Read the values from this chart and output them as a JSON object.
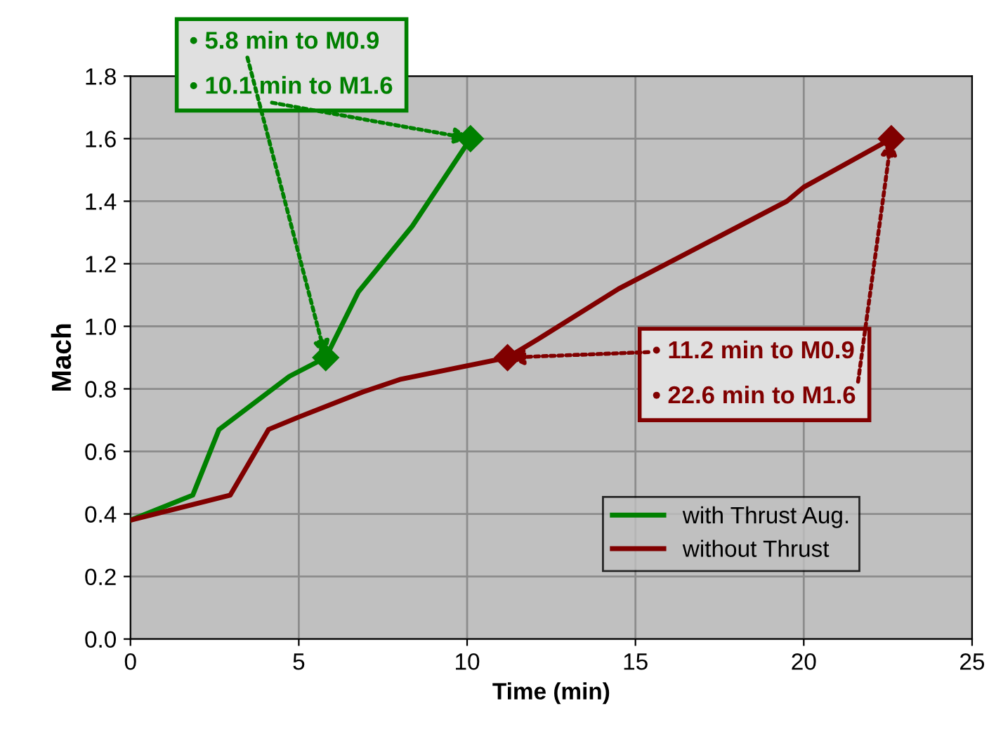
{
  "chart_data": {
    "type": "line",
    "xlabel": "Time (min)",
    "ylabel": "Mach",
    "series": [
      {
        "name": "with Thrust Aug.",
        "color": "#008000",
        "x": [
          0,
          1.85,
          2.63,
          4.72,
          5.8,
          6.77,
          8.37,
          10.1
        ],
        "values": [
          0.38,
          0.46,
          0.67,
          0.84,
          0.9,
          1.11,
          1.32,
          1.6
        ]
      },
      {
        "name": "without Thrust",
        "color": "#800000",
        "x": [
          0,
          2.96,
          4.1,
          5.0,
          6.9,
          8.0,
          11.2,
          12.2,
          14.5,
          19.5,
          20.0,
          22.6
        ],
        "values": [
          0.38,
          0.46,
          0.67,
          0.71,
          0.79,
          0.83,
          0.9,
          0.965,
          1.12,
          1.4,
          1.445,
          1.6
        ]
      }
    ],
    "annotations": [
      {
        "text": "• 5.8 min to M0.9",
        "x": 5.8,
        "y": 0.9
      },
      {
        "text": "• 10.1 min to M1.6",
        "x": 10.1,
        "y": 1.6
      },
      {
        "text": "• 11.2 min to M0.9",
        "x": 11.2,
        "y": 0.9
      },
      {
        "text": "• 22.6 min to M1.6",
        "x": 22.6,
        "y": 1.6
      }
    ],
    "xlim": [
      0,
      25
    ],
    "xticks": [
      0,
      5,
      10,
      15,
      20,
      25
    ],
    "ylim": [
      0,
      1.8
    ],
    "yticks": [
      {
        "value": 0,
        "label": "0.0"
      },
      {
        "value": 0.2,
        "label": "0.2"
      },
      {
        "value": 0.4,
        "label": "0.4"
      },
      {
        "value": 0.6,
        "label": "0.6"
      },
      {
        "value": 0.8,
        "label": "0.8"
      },
      {
        "value": 1.0,
        "label": "1.0"
      },
      {
        "value": 1.2,
        "label": "1.2"
      },
      {
        "value": 1.4,
        "label": "1.4"
      },
      {
        "value": 1.6,
        "label": "1.6"
      },
      {
        "value": 1.8,
        "label": "1.8"
      }
    ],
    "grid": true,
    "legend": "bottom right",
    "marker": "none",
    "line_style": "solid"
  }
}
